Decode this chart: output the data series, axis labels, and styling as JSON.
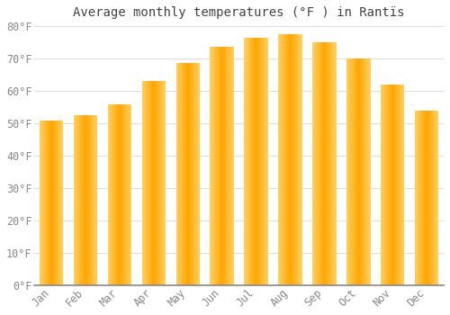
{
  "title": "Average monthly temperatures (°F ) in Rantïs",
  "months": [
    "Jan",
    "Feb",
    "Mar",
    "Apr",
    "May",
    "Jun",
    "Jul",
    "Aug",
    "Sep",
    "Oct",
    "Nov",
    "Dec"
  ],
  "values": [
    51,
    52.5,
    56,
    63,
    68.5,
    73.5,
    76.5,
    77.5,
    75,
    70,
    62,
    54
  ],
  "bar_color_center": "#FFA500",
  "bar_color_edge": "#FFD060",
  "background_color": "#FFFFFF",
  "plot_bg_color": "#FFFFFF",
  "grid_color": "#DDDDDD",
  "text_color": "#888888",
  "title_color": "#444444",
  "ylim": [
    0,
    80
  ],
  "ytick_step": 10,
  "title_fontsize": 10,
  "tick_fontsize": 8.5,
  "bar_width": 0.7,
  "figsize": [
    5.0,
    3.5
  ],
  "dpi": 100
}
